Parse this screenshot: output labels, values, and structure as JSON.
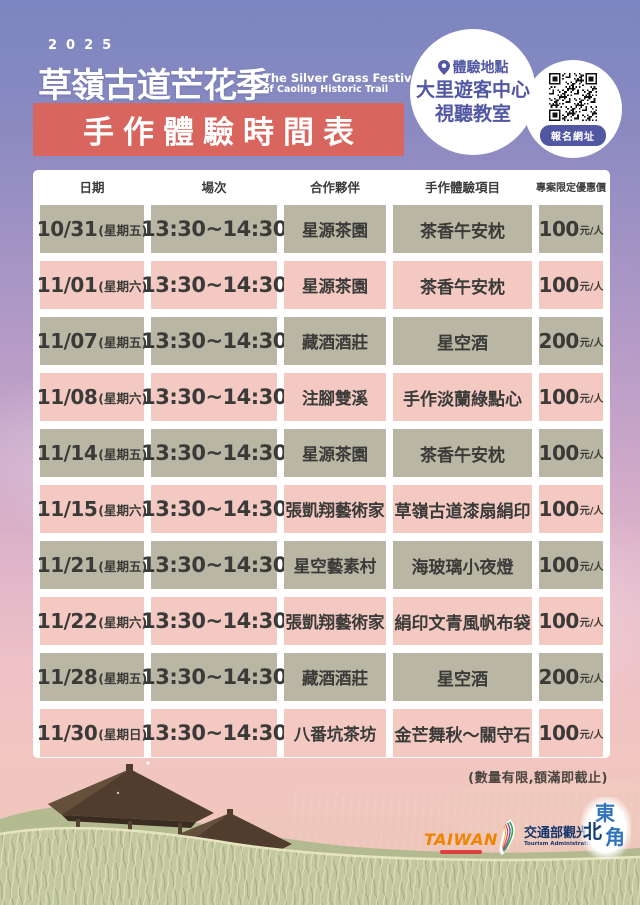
{
  "poster": {
    "year": "2025",
    "title": "草嶺古道芒花季",
    "subtitle_en_1": "The Silver Grass Festival",
    "subtitle_en_2": "of Caoling Historic Trail",
    "banner": "手作體驗時間表"
  },
  "location": {
    "label": "體驗地點",
    "venue_line1": "大里遊客中心",
    "venue_line2": "視聽教室",
    "qr_button": "報名網址"
  },
  "table": {
    "headers": [
      "日期",
      "場次",
      "合作夥伴",
      "手作體驗項目",
      "專案限定優惠價"
    ],
    "rows": [
      {
        "date": "10/31",
        "weekday": "(星期五)",
        "session": "13:30~14:30",
        "partner": "星源茶園",
        "item": "茶香午安枕",
        "price": "100",
        "unit": "元/人"
      },
      {
        "date": "11/01",
        "weekday": "(星期六)",
        "session": "13:30~14:30",
        "partner": "星源茶園",
        "item": "茶香午安枕",
        "price": "100",
        "unit": "元/人"
      },
      {
        "date": "11/07",
        "weekday": "(星期五)",
        "session": "13:30~14:30",
        "partner": "藏酒酒莊",
        "item": "星空酒",
        "price": "200",
        "unit": "元/人"
      },
      {
        "date": "11/08",
        "weekday": "(星期六)",
        "session": "13:30~14:30",
        "partner": "注腳雙溪",
        "item": "手作淡蘭綠點心",
        "price": "100",
        "unit": "元/人"
      },
      {
        "date": "11/14",
        "weekday": "(星期五)",
        "session": "13:30~14:30",
        "partner": "星源茶園",
        "item": "茶香午安枕",
        "price": "100",
        "unit": "元/人"
      },
      {
        "date": "11/15",
        "weekday": "(星期六)",
        "session": "13:30~14:30",
        "partner": "張凱翔藝術家",
        "item": "草嶺古道漆扇絹印",
        "price": "100",
        "unit": "元/人"
      },
      {
        "date": "11/21",
        "weekday": "(星期五)",
        "session": "13:30~14:30",
        "partner": "星空藝素村",
        "item": "海玻璃小夜燈",
        "price": "100",
        "unit": "元/人"
      },
      {
        "date": "11/22",
        "weekday": "(星期六)",
        "session": "13:30~14:30",
        "partner": "張凱翔藝術家",
        "item": "絹印文青風帆布袋",
        "price": "100",
        "unit": "元/人"
      },
      {
        "date": "11/28",
        "weekday": "(星期五)",
        "session": "13:30~14:30",
        "partner": "藏酒酒莊",
        "item": "星空酒",
        "price": "200",
        "unit": "元/人"
      },
      {
        "date": "11/30",
        "weekday": "(星期日)",
        "session": "13:30~14:30",
        "partner": "八番坑茶坊",
        "item": "金芒舞秋～關守石",
        "price": "100",
        "unit": "元/人"
      }
    ]
  },
  "note": "(數量有限,額滿即截止)",
  "footer": {
    "taiwan_logo": "TAIWAN",
    "motc_logo_zh": "交通部觀光署",
    "motc_logo_en": "Tourism Administration, MOTC",
    "nec_char1": "東",
    "nec_char2": "北",
    "nec_char3": "角"
  },
  "colors": {
    "banner_bg": "#d8655e",
    "cell_khaki": "#b9b6a3",
    "cell_pink": "#f3c9c2",
    "accent_purple": "#5157a3",
    "sky_top": "#7c86c0",
    "sky_pink": "#f2c6c1"
  }
}
